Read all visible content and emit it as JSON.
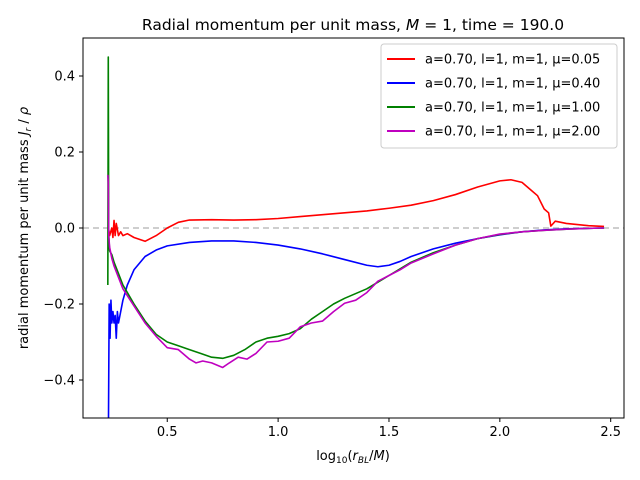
{
  "chart_data": {
    "type": "line",
    "title": "Radial momentum per unit mass, M = 1, time = 190.0",
    "xlabel": "log10(rBL/M)",
    "ylabel": "radial momentum per unit mass Jr / ρ",
    "xlim": [
      0.12,
      2.56
    ],
    "ylim": [
      -0.5,
      0.5
    ],
    "xticks": [
      0.5,
      1.0,
      1.5,
      2.0,
      2.5
    ],
    "xtick_labels": [
      "0.5",
      "1.0",
      "1.5",
      "2.0",
      "2.5"
    ],
    "yticks": [
      -0.4,
      -0.2,
      0.0,
      0.2,
      0.4
    ],
    "ytick_labels": [
      "−0.4",
      "−0.2",
      "0.0",
      "0.2",
      "0.4"
    ],
    "grid": false,
    "legend_position": "top-right",
    "reference_line": {
      "y": 0.0,
      "style": "dashed",
      "color": "#bdbdbd"
    },
    "series": [
      {
        "name": "a=0.70, l=1, m=1, μ=0.05",
        "color": "#ff0000",
        "points": [
          [
            0.235,
            0.0
          ],
          [
            0.24,
            -0.02
          ],
          [
            0.25,
            0.0
          ],
          [
            0.255,
            -0.025
          ],
          [
            0.26,
            0.02
          ],
          [
            0.265,
            -0.02
          ],
          [
            0.27,
            0.012
          ],
          [
            0.28,
            -0.02
          ],
          [
            0.29,
            -0.01
          ],
          [
            0.3,
            -0.02
          ],
          [
            0.32,
            -0.015
          ],
          [
            0.35,
            -0.025
          ],
          [
            0.4,
            -0.035
          ],
          [
            0.45,
            -0.02
          ],
          [
            0.5,
            0.0
          ],
          [
            0.55,
            0.015
          ],
          [
            0.6,
            0.021
          ],
          [
            0.7,
            0.022
          ],
          [
            0.8,
            0.021
          ],
          [
            0.9,
            0.022
          ],
          [
            1.0,
            0.025
          ],
          [
            1.1,
            0.03
          ],
          [
            1.2,
            0.035
          ],
          [
            1.3,
            0.04
          ],
          [
            1.4,
            0.045
          ],
          [
            1.5,
            0.052
          ],
          [
            1.6,
            0.06
          ],
          [
            1.7,
            0.072
          ],
          [
            1.8,
            0.088
          ],
          [
            1.9,
            0.108
          ],
          [
            2.0,
            0.124
          ],
          [
            2.05,
            0.127
          ],
          [
            2.1,
            0.12
          ],
          [
            2.14,
            0.1
          ],
          [
            2.17,
            0.085
          ],
          [
            2.2,
            0.05
          ],
          [
            2.22,
            0.04
          ],
          [
            2.23,
            0.005
          ],
          [
            2.25,
            0.018
          ],
          [
            2.3,
            0.012
          ],
          [
            2.4,
            0.006
          ],
          [
            2.47,
            0.004
          ]
        ]
      },
      {
        "name": "a=0.70, l=1, m=1, μ=0.40",
        "color": "#0000ff",
        "points": [
          [
            0.235,
            -0.5
          ],
          [
            0.238,
            -0.2
          ],
          [
            0.242,
            -0.29
          ],
          [
            0.246,
            -0.19
          ],
          [
            0.25,
            -0.25
          ],
          [
            0.255,
            -0.22
          ],
          [
            0.26,
            -0.25
          ],
          [
            0.265,
            -0.23
          ],
          [
            0.27,
            -0.29
          ],
          [
            0.275,
            -0.22
          ],
          [
            0.28,
            -0.25
          ],
          [
            0.29,
            -0.22
          ],
          [
            0.3,
            -0.19
          ],
          [
            0.32,
            -0.15
          ],
          [
            0.35,
            -0.11
          ],
          [
            0.4,
            -0.075
          ],
          [
            0.45,
            -0.058
          ],
          [
            0.5,
            -0.047
          ],
          [
            0.6,
            -0.038
          ],
          [
            0.7,
            -0.034
          ],
          [
            0.8,
            -0.034
          ],
          [
            0.9,
            -0.038
          ],
          [
            1.0,
            -0.045
          ],
          [
            1.1,
            -0.055
          ],
          [
            1.2,
            -0.068
          ],
          [
            1.3,
            -0.083
          ],
          [
            1.4,
            -0.098
          ],
          [
            1.45,
            -0.102
          ],
          [
            1.5,
            -0.098
          ],
          [
            1.55,
            -0.088
          ],
          [
            1.6,
            -0.075
          ],
          [
            1.7,
            -0.055
          ],
          [
            1.8,
            -0.04
          ],
          [
            1.9,
            -0.028
          ],
          [
            2.0,
            -0.018
          ],
          [
            2.1,
            -0.01
          ],
          [
            2.2,
            -0.005
          ],
          [
            2.3,
            -0.002
          ],
          [
            2.4,
            -0.001
          ],
          [
            2.47,
            0.0
          ]
        ]
      },
      {
        "name": "a=0.70, l=1, m=1, μ=1.00",
        "color": "#008000",
        "points": [
          [
            0.232,
            -0.15
          ],
          [
            0.234,
            0.45
          ],
          [
            0.236,
            -0.02
          ],
          [
            0.24,
            -0.06
          ],
          [
            0.25,
            -0.07
          ],
          [
            0.26,
            -0.09
          ],
          [
            0.28,
            -0.12
          ],
          [
            0.3,
            -0.15
          ],
          [
            0.35,
            -0.2
          ],
          [
            0.4,
            -0.245
          ],
          [
            0.45,
            -0.28
          ],
          [
            0.5,
            -0.3
          ],
          [
            0.55,
            -0.31
          ],
          [
            0.6,
            -0.32
          ],
          [
            0.65,
            -0.33
          ],
          [
            0.7,
            -0.34
          ],
          [
            0.75,
            -0.343
          ],
          [
            0.8,
            -0.335
          ],
          [
            0.85,
            -0.32
          ],
          [
            0.9,
            -0.3
          ],
          [
            0.95,
            -0.29
          ],
          [
            1.0,
            -0.285
          ],
          [
            1.05,
            -0.278
          ],
          [
            1.1,
            -0.265
          ],
          [
            1.15,
            -0.24
          ],
          [
            1.2,
            -0.22
          ],
          [
            1.25,
            -0.2
          ],
          [
            1.3,
            -0.185
          ],
          [
            1.4,
            -0.16
          ],
          [
            1.5,
            -0.125
          ],
          [
            1.6,
            -0.09
          ],
          [
            1.7,
            -0.065
          ],
          [
            1.8,
            -0.045
          ],
          [
            1.9,
            -0.028
          ],
          [
            2.0,
            -0.017
          ],
          [
            2.1,
            -0.01
          ],
          [
            2.2,
            -0.006
          ],
          [
            2.3,
            -0.003
          ],
          [
            2.4,
            -0.001
          ],
          [
            2.47,
            0.0
          ]
        ]
      },
      {
        "name": "a=0.70, l=1, m=1, μ=2.00",
        "color": "#bf00bf",
        "points": [
          [
            0.232,
            0.14
          ],
          [
            0.234,
            0.12
          ],
          [
            0.236,
            -0.02
          ],
          [
            0.24,
            -0.05
          ],
          [
            0.25,
            -0.08
          ],
          [
            0.26,
            -0.1
          ],
          [
            0.28,
            -0.13
          ],
          [
            0.3,
            -0.16
          ],
          [
            0.35,
            -0.205
          ],
          [
            0.4,
            -0.25
          ],
          [
            0.45,
            -0.285
          ],
          [
            0.5,
            -0.315
          ],
          [
            0.55,
            -0.32
          ],
          [
            0.6,
            -0.345
          ],
          [
            0.63,
            -0.355
          ],
          [
            0.66,
            -0.35
          ],
          [
            0.7,
            -0.355
          ],
          [
            0.75,
            -0.367
          ],
          [
            0.78,
            -0.355
          ],
          [
            0.82,
            -0.34
          ],
          [
            0.86,
            -0.345
          ],
          [
            0.9,
            -0.33
          ],
          [
            0.95,
            -0.3
          ],
          [
            1.0,
            -0.298
          ],
          [
            1.05,
            -0.29
          ],
          [
            1.1,
            -0.26
          ],
          [
            1.15,
            -0.25
          ],
          [
            1.2,
            -0.245
          ],
          [
            1.25,
            -0.22
          ],
          [
            1.3,
            -0.198
          ],
          [
            1.35,
            -0.19
          ],
          [
            1.4,
            -0.17
          ],
          [
            1.45,
            -0.14
          ],
          [
            1.5,
            -0.125
          ],
          [
            1.55,
            -0.11
          ],
          [
            1.6,
            -0.092
          ],
          [
            1.7,
            -0.068
          ],
          [
            1.8,
            -0.045
          ],
          [
            1.9,
            -0.028
          ],
          [
            2.0,
            -0.016
          ],
          [
            2.1,
            -0.01
          ],
          [
            2.2,
            -0.006
          ],
          [
            2.3,
            -0.003
          ],
          [
            2.4,
            -0.001
          ],
          [
            2.47,
            0.0
          ]
        ]
      }
    ]
  }
}
